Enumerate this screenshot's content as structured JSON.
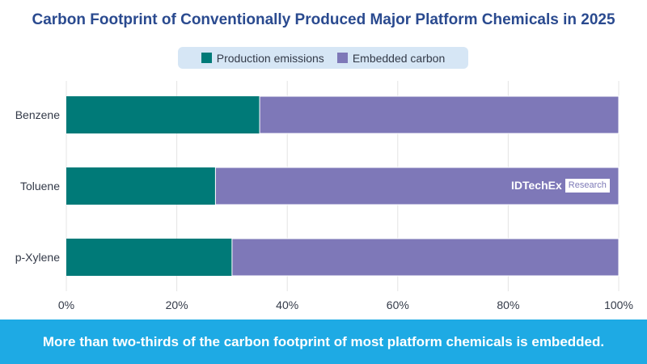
{
  "header": {
    "title": "Carbon Footprint of Conventionally Produced Major Platform Chemicals in 2025"
  },
  "legend": [
    {
      "label": "Production emissions",
      "color": "#007a78"
    },
    {
      "label": "Embedded carbon",
      "color": "#7e78b8"
    }
  ],
  "watermark": {
    "brand": "IDTechEx",
    "suffix": "Research"
  },
  "footer": {
    "text": "More than two-thirds of the carbon footprint of most platform chemicals is embedded."
  },
  "chart_data": {
    "type": "bar",
    "orientation": "horizontal",
    "stacked": true,
    "categories": [
      "Benzene",
      "Toluene",
      "p-Xylene"
    ],
    "series": [
      {
        "name": "Production emissions",
        "values": [
          35,
          27,
          30
        ],
        "color": "#007a78"
      },
      {
        "name": "Embedded carbon",
        "values": [
          65,
          73,
          70
        ],
        "color": "#7e78b8"
      }
    ],
    "xlim": [
      0,
      100
    ],
    "xticks": [
      "0%",
      "20%",
      "40%",
      "60%",
      "80%",
      "100%"
    ],
    "grid": true,
    "legend_position": "top"
  }
}
